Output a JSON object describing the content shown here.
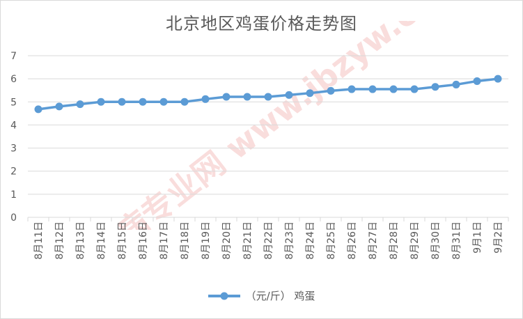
{
  "chart_data": {
    "type": "line",
    "title": "北京地区鸡蛋价格走势图",
    "categories": [
      "8月11日",
      "8月12日",
      "8月13日",
      "8月14日",
      "8月15日",
      "8月16日",
      "8月17日",
      "8月18日",
      "8月19日",
      "8月20日",
      "8月21日",
      "8月22日",
      "8月23日",
      "8月24日",
      "8月25日",
      "8月26日",
      "8月27日",
      "8月28日",
      "8月29日",
      "8月30日",
      "8月31日",
      "9月1日",
      "9月2日"
    ],
    "series": [
      {
        "name": "（元/斤） 鸡蛋",
        "color": "#5b9bd5",
        "values": [
          4.68,
          4.8,
          4.9,
          5.0,
          5.0,
          5.0,
          5.0,
          5.0,
          5.12,
          5.22,
          5.22,
          5.22,
          5.3,
          5.38,
          5.48,
          5.55,
          5.55,
          5.55,
          5.55,
          5.65,
          5.75,
          5.9,
          6.0
        ]
      }
    ],
    "ylim": [
      0,
      7
    ],
    "yticks": [
      0,
      1,
      2,
      3,
      4,
      5,
      6,
      7
    ],
    "grid": true,
    "legend_position": "bottom",
    "watermark": "鸡病专业网 www.jbzyw.com"
  }
}
